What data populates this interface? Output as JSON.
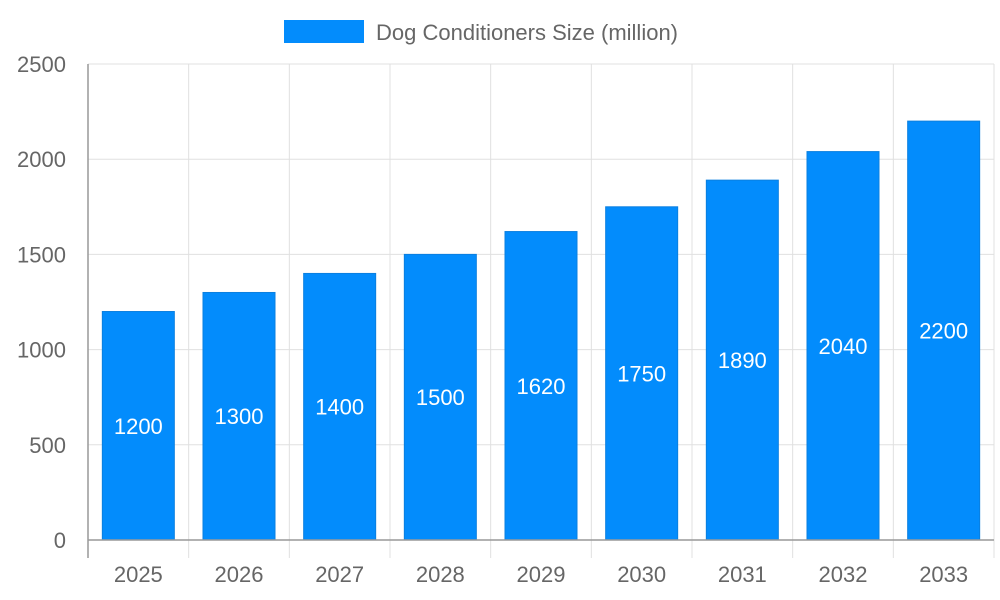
{
  "chart_data": {
    "type": "bar",
    "title": "",
    "xlabel": "",
    "ylabel": "",
    "categories": [
      "2025",
      "2026",
      "2027",
      "2028",
      "2029",
      "2030",
      "2031",
      "2032",
      "2033"
    ],
    "series": [
      {
        "name": "Dog Conditioners Size (million)",
        "values": [
          1200,
          1300,
          1400,
          1500,
          1620,
          1750,
          1890,
          2040,
          2200
        ],
        "color": "#038cfc"
      }
    ],
    "ylim": [
      0,
      2500
    ],
    "yticks": [
      0,
      500,
      1000,
      1500,
      2000,
      2500
    ],
    "grid": true,
    "legend": "top-center",
    "data_labels": true
  }
}
